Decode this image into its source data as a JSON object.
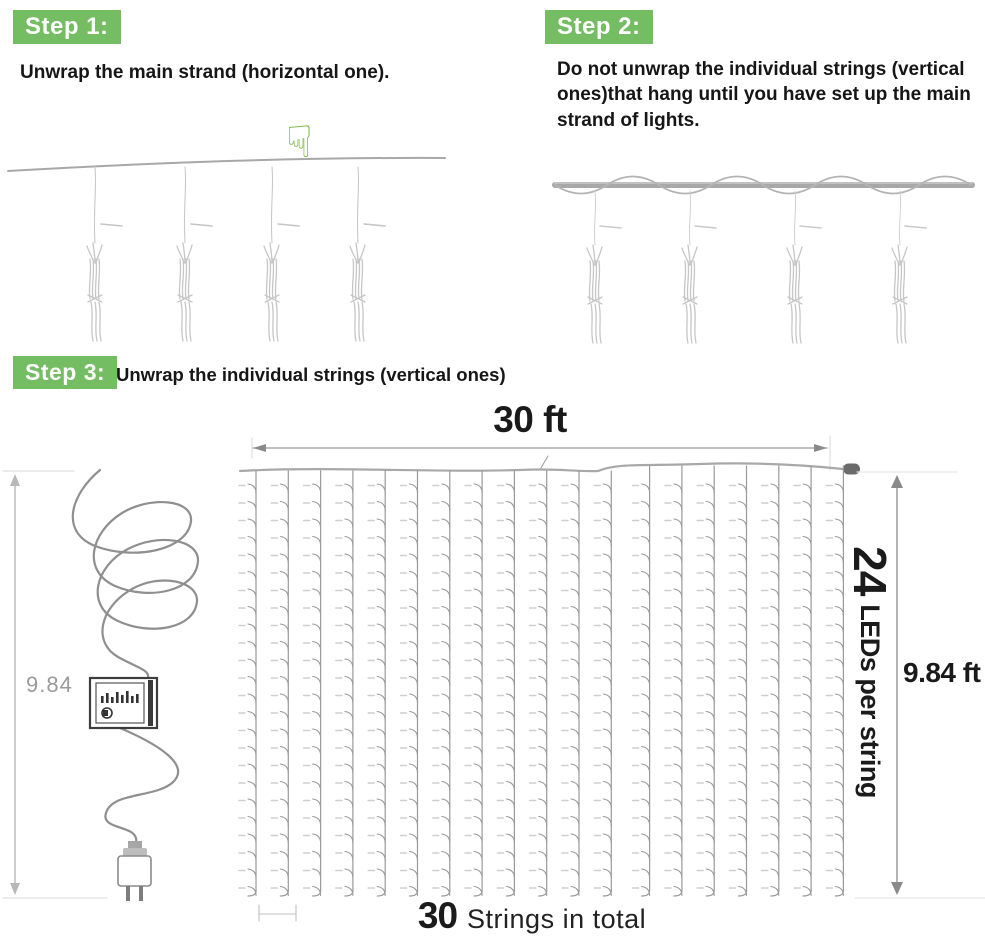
{
  "steps": [
    {
      "badge": "Step 1:",
      "text": "Unwrap the main strand (horizontal one)."
    },
    {
      "badge": "Step 2:",
      "text": "Do not unwrap the individual strings (vertical ones)that hang until you have set up the main strand of lights."
    },
    {
      "badge": "Step 3:",
      "text": "Unwrap the individual strings (vertical ones)"
    }
  ],
  "icons": {
    "hand_pointing_down": "☟"
  },
  "diagram": {
    "width_label": "30 ft",
    "height_label": "9.84 ft",
    "left_height_label": "9.84",
    "leds_per_string_count": "24",
    "leds_per_string_text": "LEDs per string",
    "strings_total_count": "30",
    "strings_total_text": "Strings in total",
    "grid": {
      "columns_drawn": 19,
      "leds_per_column": 24,
      "strings_total": 30,
      "leds_per_string": 24
    }
  },
  "colors": {
    "badge_green": "#74bd63",
    "hand_green": "#7cb342",
    "text_dark": "#1a1a1a",
    "gray_label": "#9a9a9a",
    "strand_gray": "#a8a8a8",
    "string_gray": "#9a9a9a",
    "bulb_gray": "#cfcfcf",
    "light_cap_gray": "#e0e0e0",
    "arrow_gray": "#8a8a8a",
    "bundle_gray": "#c6c6c6",
    "connector_dark": "#6b6b6b",
    "cord_gray": "#8f8f8f"
  }
}
